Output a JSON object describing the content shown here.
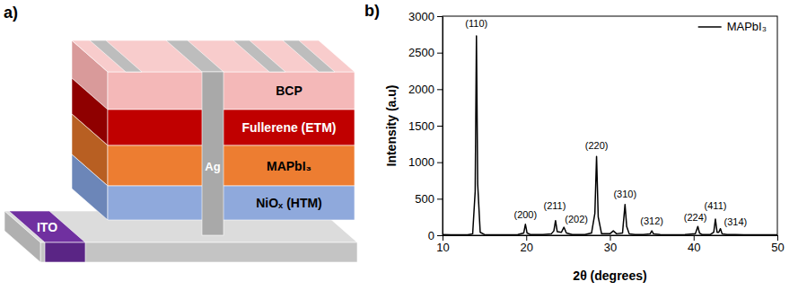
{
  "diagram": {
    "panel_label": "a)",
    "layers": [
      "BCP",
      "Fullerene (ETM)",
      "MAPbI₃",
      "NiOₓ (HTM)"
    ],
    "electrode": "Ag",
    "substrate": "ITO"
  },
  "chart_data": {
    "type": "line",
    "panel_label": "b)",
    "x_label": "2θ (degrees)",
    "y_label": "Intensity (a.u)",
    "x": [
      10,
      11,
      12,
      13,
      13.6,
      13.9,
      14.05,
      14.2,
      14.5,
      15,
      16,
      17,
      18,
      19,
      19.7,
      19.9,
      20.1,
      20.5,
      21,
      22,
      23,
      23.3,
      23.5,
      23.7,
      24.2,
      24.5,
      24.8,
      25.5,
      26,
      27,
      27.8,
      28.2,
      28.4,
      28.6,
      29,
      30,
      30.4,
      30.8,
      31.5,
      31.8,
      32.0,
      32.3,
      33,
      34,
      34.8,
      35.0,
      35.2,
      36,
      37,
      38,
      39,
      40.2,
      40.5,
      40.7,
      41,
      42,
      42.4,
      42.6,
      42.8,
      43.0,
      43.2,
      43.4,
      44,
      45,
      46,
      47,
      48,
      49,
      50
    ],
    "series": [
      {
        "name": "MAPbI₃",
        "color": "#000000",
        "values": [
          10,
          5,
          5,
          5,
          20,
          600,
          2730,
          700,
          40,
          10,
          5,
          5,
          5,
          10,
          30,
          150,
          30,
          10,
          10,
          10,
          20,
          60,
          200,
          50,
          40,
          110,
          30,
          10,
          10,
          10,
          30,
          300,
          1080,
          250,
          20,
          20,
          60,
          20,
          30,
          420,
          120,
          20,
          10,
          10,
          20,
          60,
          20,
          10,
          5,
          5,
          10,
          20,
          120,
          30,
          10,
          10,
          40,
          220,
          40,
          40,
          90,
          20,
          10,
          10,
          5,
          5,
          5,
          5,
          5
        ]
      }
    ],
    "xlim": [
      10,
      50
    ],
    "xticks": [
      10,
      20,
      30,
      40,
      50
    ],
    "ylim": [
      0,
      3000
    ],
    "yticks": [
      0,
      500,
      1000,
      1500,
      2000,
      2500,
      3000
    ],
    "legend": "upper right",
    "annotations": [
      {
        "text": "(110)",
        "x": 14.05,
        "y": 2850
      },
      {
        "text": "(200)",
        "x": 19.9,
        "y": 230
      },
      {
        "text": "(211)",
        "x": 23.4,
        "y": 360
      },
      {
        "text": "(202)",
        "x": 26.0,
        "y": 170
      },
      {
        "text": "(220)",
        "x": 28.4,
        "y": 1180
      },
      {
        "text": "(310)",
        "x": 31.8,
        "y": 520
      },
      {
        "text": "(312)",
        "x": 35.0,
        "y": 150
      },
      {
        "text": "(224)",
        "x": 40.2,
        "y": 200
      },
      {
        "text": "(411)",
        "x": 42.6,
        "y": 360
      },
      {
        "text": "(314)",
        "x": 45.0,
        "y": 140
      }
    ]
  }
}
